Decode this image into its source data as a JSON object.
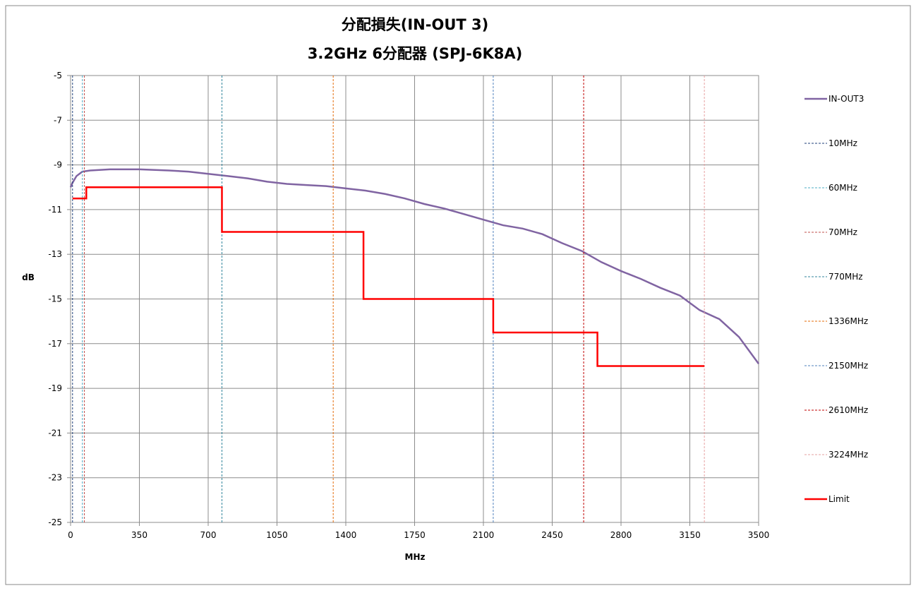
{
  "chart_data": {
    "type": "line",
    "title": "分配損失(IN-OUT 3)",
    "subtitle": "3.2GHz 6分配器 (SPJ-6K8A)",
    "x_label": "MHz",
    "y_label": "dB",
    "xlim": [
      0,
      3500
    ],
    "xticks": [
      0,
      350,
      700,
      1050,
      1400,
      1750,
      2100,
      2450,
      2800,
      3150,
      3500
    ],
    "ylim": [
      -25,
      -5
    ],
    "yticks": [
      -5,
      -7,
      -9,
      -11,
      -13,
      -15,
      -17,
      -19,
      -21,
      -23,
      -25
    ],
    "grid": true,
    "legend": "right",
    "series": [
      {
        "name": "IN-OUT3",
        "color": "#8064a2",
        "dashed": false,
        "x": [
          0,
          10,
          30,
          60,
          100,
          200,
          350,
          500,
          600,
          700,
          800,
          900,
          1000,
          1100,
          1200,
          1300,
          1400,
          1500,
          1600,
          1700,
          1800,
          1900,
          2000,
          2100,
          2200,
          2300,
          2400,
          2500,
          2600,
          2700,
          2800,
          2900,
          3000,
          3100,
          3200,
          3300,
          3400,
          3500
        ],
        "values": [
          -10,
          -9.8,
          -9.5,
          -9.3,
          -9.25,
          -9.2,
          -9.2,
          -9.25,
          -9.3,
          -9.4,
          -9.5,
          -9.6,
          -9.75,
          -9.85,
          -9.9,
          -9.95,
          -10.05,
          -10.15,
          -10.3,
          -10.5,
          -10.75,
          -10.95,
          -11.2,
          -11.45,
          -11.7,
          -11.85,
          -12.1,
          -12.5,
          -12.85,
          -13.35,
          -13.75,
          -14.1,
          -14.5,
          -14.85,
          -15.5,
          -15.9,
          -16.7,
          -17.9
        ]
      },
      {
        "name": "10MHz",
        "color": "#1f3f7a",
        "dashed": true,
        "x": [
          10,
          10
        ],
        "values": [
          -5,
          -25
        ]
      },
      {
        "name": "60MHz",
        "color": "#4bacc6",
        "dashed": true,
        "x": [
          60,
          60
        ],
        "values": [
          -5,
          -25
        ]
      },
      {
        "name": "70MHz",
        "color": "#c0504d",
        "dashed": true,
        "x": [
          70,
          70
        ],
        "values": [
          -5,
          -25
        ]
      },
      {
        "name": "770MHz",
        "color": "#31859c",
        "dashed": true,
        "x": [
          770,
          770
        ],
        "values": [
          -5,
          -25
        ]
      },
      {
        "name": "1336MHz",
        "color": "#e46c0a",
        "dashed": true,
        "x": [
          1336,
          1336
        ],
        "values": [
          -5,
          -25
        ]
      },
      {
        "name": "2150MHz",
        "color": "#4f81bd",
        "dashed": true,
        "x": [
          2150,
          2150
        ],
        "values": [
          -5,
          -25
        ]
      },
      {
        "name": "2610MHz",
        "color": "#c00000",
        "dashed": true,
        "x": [
          2610,
          2610
        ],
        "values": [
          -5,
          -25
        ]
      },
      {
        "name": "3224MHz",
        "color": "#e6a0a0",
        "dashed": true,
        "x": [
          3224,
          3224
        ],
        "values": [
          -5,
          -25
        ]
      },
      {
        "name": "Limit",
        "color": "#ff0000",
        "dashed": false,
        "x": [
          10,
          80,
          80,
          770,
          770,
          1490,
          1490,
          2150,
          2150,
          2680,
          2680,
          3224
        ],
        "values": [
          -10.5,
          -10.5,
          -10,
          -10,
          -12,
          -12,
          -15,
          -15,
          -16.5,
          -16.5,
          -18,
          -18
        ]
      }
    ]
  }
}
